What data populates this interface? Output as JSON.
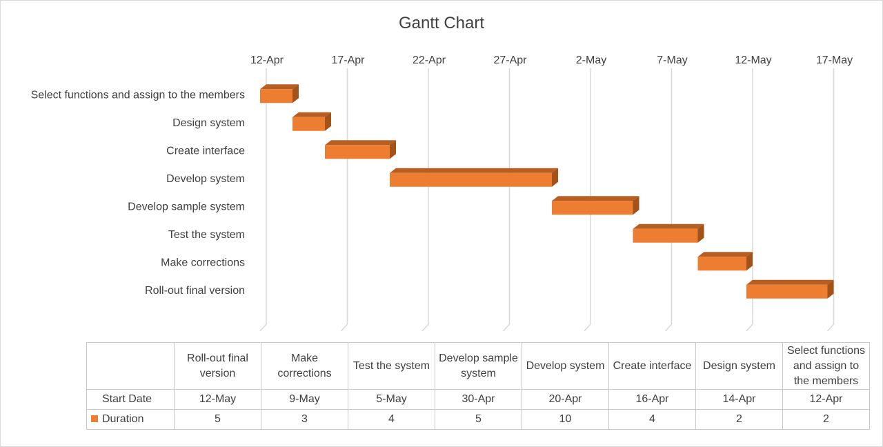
{
  "chart_data": {
    "type": "bar",
    "orientation": "horizontal",
    "stacked": true,
    "title": "Gantt Chart",
    "x_axis_position": "top",
    "x_tick_labels": [
      "12-Apr",
      "17-Apr",
      "22-Apr",
      "27-Apr",
      "2-May",
      "7-May",
      "12-May",
      "17-May"
    ],
    "x_range": [
      "12-Apr",
      "17-May"
    ],
    "gridlines": true,
    "categories": [
      "Select functions and assign to the members",
      "Design system",
      "Create interface",
      "Develop system",
      "Develop sample system",
      "Test the system",
      "Make corrections",
      "Roll-out final version"
    ],
    "series": [
      {
        "name": "Start Date",
        "visible": false,
        "values": [
          "12-Apr",
          "14-Apr",
          "16-Apr",
          "20-Apr",
          "30-Apr",
          "5-May",
          "9-May",
          "12-May"
        ]
      },
      {
        "name": "Duration",
        "color": "#ed7d31",
        "values": [
          2,
          2,
          4,
          10,
          5,
          4,
          3,
          5
        ]
      }
    ],
    "data_table": {
      "shown": true,
      "columns": [
        "Roll-out final version",
        "Make corrections",
        "Test the system",
        "Develop sample system",
        "Develop system",
        "Create interface",
        "Design system",
        "Select functions and assign to the members"
      ],
      "rows": [
        {
          "label": "Start Date",
          "legend_key": false,
          "values": [
            "12-May",
            "9-May",
            "5-May",
            "30-Apr",
            "20-Apr",
            "16-Apr",
            "14-Apr",
            "12-Apr"
          ]
        },
        {
          "label": "Duration",
          "legend_key": true,
          "values": [
            "5",
            "3",
            "4",
            "5",
            "10",
            "4",
            "2",
            "2"
          ]
        }
      ]
    }
  }
}
